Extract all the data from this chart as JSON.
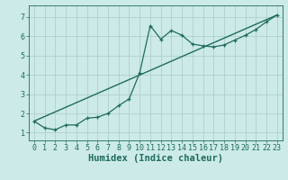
{
  "title": "",
  "xlabel": "Humidex (Indice chaleur)",
  "ylabel": "",
  "background_color": "#cceae7",
  "grid_color": "#b0d0cc",
  "line_color": "#1e6b5e",
  "xlim": [
    -0.5,
    23.5
  ],
  "ylim": [
    0.6,
    7.6
  ],
  "xticks": [
    0,
    1,
    2,
    3,
    4,
    5,
    6,
    7,
    8,
    9,
    10,
    11,
    12,
    13,
    14,
    15,
    16,
    17,
    18,
    19,
    20,
    21,
    22,
    23
  ],
  "yticks": [
    1,
    2,
    3,
    4,
    5,
    6,
    7
  ],
  "curve1_x": [
    0,
    1,
    2,
    3,
    4,
    5,
    6,
    7,
    8,
    9,
    10,
    11,
    12,
    13,
    14,
    15,
    16,
    17,
    18,
    19,
    20,
    21,
    22,
    23
  ],
  "curve1_y": [
    1.6,
    1.25,
    1.15,
    1.4,
    1.4,
    1.75,
    1.8,
    2.0,
    2.4,
    2.75,
    4.1,
    6.55,
    5.85,
    6.3,
    6.05,
    5.6,
    5.5,
    5.45,
    5.55,
    5.8,
    6.05,
    6.35,
    6.75,
    7.1
  ],
  "curve2_x": [
    0,
    23
  ],
  "curve2_y": [
    1.6,
    7.1
  ],
  "font_color": "#1e6b5e",
  "tick_fontsize": 6,
  "xlabel_fontsize": 7.5
}
